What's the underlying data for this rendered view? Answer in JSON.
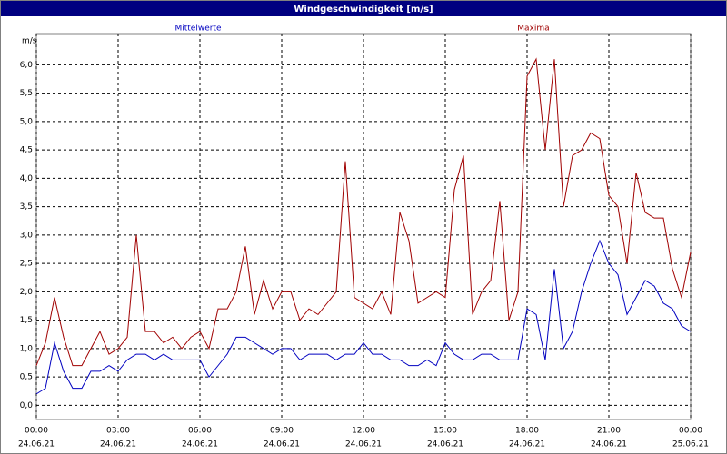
{
  "chart_data": {
    "type": "line",
    "title": "Windgeschwindigkeit [m/s]",
    "y_label": "m/s",
    "x": [
      0,
      20,
      40,
      60,
      80,
      100,
      120,
      140,
      160,
      180,
      200,
      220,
      240,
      260,
      280,
      300,
      320,
      340,
      360,
      380,
      400,
      420,
      440,
      460,
      480,
      500,
      520,
      540,
      560,
      580,
      600,
      620,
      640,
      660,
      680,
      700,
      720,
      740,
      760,
      780,
      800,
      820,
      840,
      860,
      880,
      900,
      920,
      940,
      960,
      980,
      1000,
      1020,
      1040,
      1060,
      1080,
      1100,
      1120,
      1140,
      1160,
      1180,
      1200,
      1220,
      1240,
      1260,
      1280,
      1300,
      1320,
      1340,
      1360,
      1380,
      1400,
      1420,
      1440
    ],
    "series": [
      {
        "name": "Mittelwerte",
        "color": "#0000c0",
        "values": [
          0.2,
          0.3,
          1.1,
          0.6,
          0.3,
          0.3,
          0.6,
          0.6,
          0.7,
          0.6,
          0.8,
          0.9,
          0.9,
          0.8,
          0.9,
          0.8,
          0.8,
          0.8,
          0.8,
          0.5,
          0.7,
          0.9,
          1.2,
          1.2,
          1.1,
          1.0,
          0.9,
          1.0,
          1.0,
          0.8,
          0.9,
          0.9,
          0.9,
          0.8,
          0.9,
          0.9,
          1.1,
          0.9,
          0.9,
          0.8,
          0.8,
          0.7,
          0.7,
          0.8,
          0.7,
          1.1,
          0.9,
          0.8,
          0.8,
          0.9,
          0.9,
          0.8,
          0.8,
          0.8,
          1.7,
          1.6,
          0.8,
          2.4,
          1.0,
          1.3,
          2.0,
          2.5,
          2.9,
          2.5,
          2.3,
          1.6,
          1.9,
          2.2,
          2.1,
          1.8,
          1.7,
          1.4,
          1.3
        ]
      },
      {
        "name": "Maxima",
        "color": "#a00000",
        "values": [
          0.7,
          1.1,
          1.9,
          1.2,
          0.7,
          0.7,
          1.0,
          1.3,
          0.9,
          1.0,
          1.2,
          3.0,
          1.3,
          1.3,
          1.1,
          1.2,
          1.0,
          1.2,
          1.3,
          1.0,
          1.7,
          1.7,
          2.0,
          2.8,
          1.6,
          2.2,
          1.7,
          2.0,
          2.0,
          1.5,
          1.7,
          1.6,
          1.8,
          2.0,
          4.3,
          1.9,
          1.8,
          1.7,
          2.0,
          1.6,
          3.4,
          2.9,
          1.8,
          1.9,
          2.0,
          1.9,
          3.8,
          4.4,
          1.6,
          2.0,
          2.2,
          3.6,
          1.5,
          2.0,
          5.8,
          6.1,
          4.5,
          6.1,
          3.5,
          4.4,
          4.5,
          4.8,
          4.7,
          3.7,
          3.5,
          2.5,
          4.1,
          3.4,
          3.3,
          3.3,
          2.4,
          1.9,
          2.7
        ]
      }
    ],
    "xlim": [
      0,
      1440
    ],
    "xticks": [
      {
        "value": 0,
        "label": "00:00"
      },
      {
        "value": 180,
        "label": "03:00"
      },
      {
        "value": 360,
        "label": "06:00"
      },
      {
        "value": 540,
        "label": "09:00"
      },
      {
        "value": 720,
        "label": "12:00"
      },
      {
        "value": 900,
        "label": "15:00"
      },
      {
        "value": 1080,
        "label": "18:00"
      },
      {
        "value": 1260,
        "label": "21:00"
      },
      {
        "value": 1440,
        "label": "00:00"
      }
    ],
    "xtick_dates": [
      "24.06.21",
      "24.06.21",
      "24.06.21",
      "24.06.21",
      "24.06.21",
      "24.06.21",
      "24.06.21",
      "24.06.21",
      "25.06.21"
    ],
    "ylim": [
      -0.25,
      6.55
    ],
    "yticks": [
      {
        "value": 0,
        "label": "0,0"
      },
      {
        "value": 0.5,
        "label": "0,5"
      },
      {
        "value": 1,
        "label": "1,0"
      },
      {
        "value": 1.5,
        "label": "1,5"
      },
      {
        "value": 2,
        "label": "2,0"
      },
      {
        "value": 2.5,
        "label": "2,5"
      },
      {
        "value": 3,
        "label": "3,0"
      },
      {
        "value": 3.5,
        "label": "3,5"
      },
      {
        "value": 4,
        "label": "4,0"
      },
      {
        "value": 4.5,
        "label": "4,5"
      },
      {
        "value": 5,
        "label": "5,0"
      },
      {
        "value": 5.5,
        "label": "5,5"
      },
      {
        "value": 6,
        "label": "6,0"
      }
    ],
    "grid": true
  }
}
